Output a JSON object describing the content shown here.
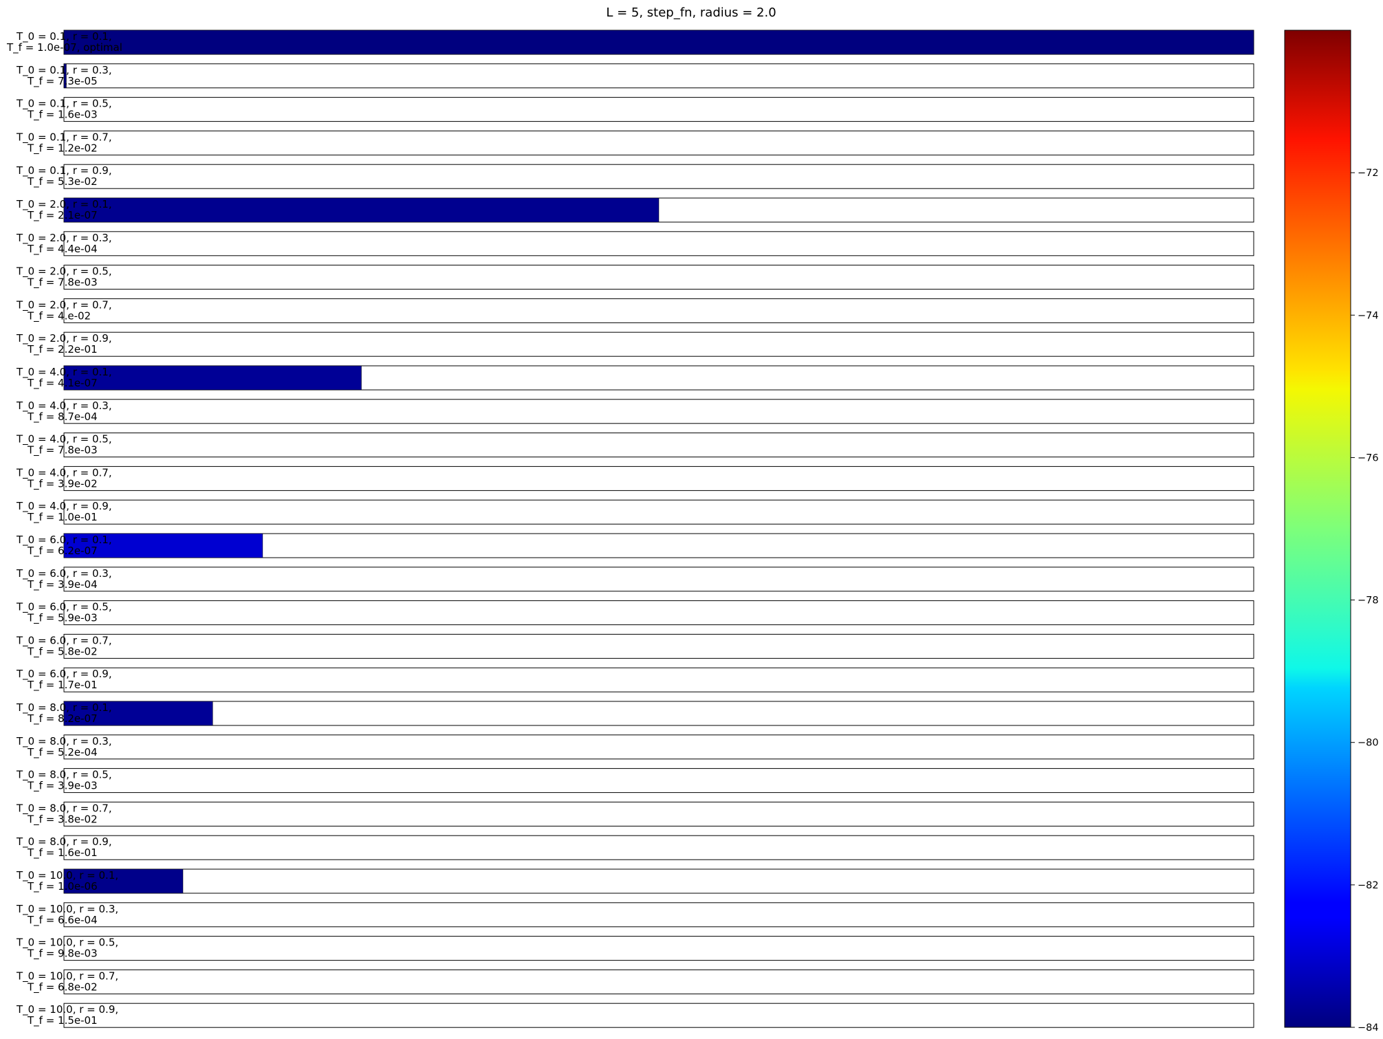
{
  "title": "L = 5, step_fn, radius = 2.0",
  "chart_data": {
    "type": "bar",
    "orientation": "horizontal",
    "title": "L = 5, step_fn, radius = 2.0",
    "xlim": [
      0,
      1
    ],
    "color_scale": {
      "colormap": "jet",
      "range": [
        -84,
        -70
      ],
      "ticks": [
        "−72",
        "−74",
        "−76",
        "−78",
        "−80",
        "−82",
        "−84"
      ],
      "tick_values": [
        -72,
        -74,
        -76,
        -78,
        -80,
        -82,
        -84
      ]
    },
    "rows": [
      {
        "label1": "T_0 = 0.1, r = 0.1,",
        "label2": "T_f = 1.0e-07, optimal",
        "value": 1.0,
        "color": "#00007f"
      },
      {
        "label1": "T_0 = 0.1, r = 0.3,",
        "label2": "T_f = 7.3e-05",
        "value": 0.002,
        "color": "#00007f"
      },
      {
        "label1": "T_0 = 0.1, r = 0.5,",
        "label2": "T_f = 1.6e-03",
        "value": 0,
        "color": "#00007f"
      },
      {
        "label1": "T_0 = 0.1, r = 0.7,",
        "label2": "T_f = 1.2e-02",
        "value": 0,
        "color": "#00007f"
      },
      {
        "label1": "T_0 = 0.1, r = 0.9,",
        "label2": "T_f = 5.3e-02",
        "value": 0,
        "color": "#00007f"
      },
      {
        "label1": "T_0 = 2.0, r = 0.1,",
        "label2": "T_f = 2.1e-07",
        "value": 0.5,
        "color": "#00008f"
      },
      {
        "label1": "T_0 = 2.0, r = 0.3,",
        "label2": "T_f = 4.4e-04",
        "value": 0,
        "color": "#00007f"
      },
      {
        "label1": "T_0 = 2.0, r = 0.5,",
        "label2": "T_f = 7.8e-03",
        "value": 0,
        "color": "#00007f"
      },
      {
        "label1": "T_0 = 2.0, r = 0.7,",
        "label2": "T_f = 4.e-02",
        "value": 0,
        "color": "#00007f"
      },
      {
        "label1": "T_0 = 2.0, r = 0.9,",
        "label2": "T_f = 2.2e-01",
        "value": 0,
        "color": "#00007f"
      },
      {
        "label1": "T_0 = 4.0, r = 0.1,",
        "label2": "T_f = 4.1e-07",
        "value": 0.25,
        "color": "#000096"
      },
      {
        "label1": "T_0 = 4.0, r = 0.3,",
        "label2": "T_f = 8.7e-04",
        "value": 0,
        "color": "#00007f"
      },
      {
        "label1": "T_0 = 4.0, r = 0.5,",
        "label2": "T_f = 7.8e-03",
        "value": 0,
        "color": "#00007f"
      },
      {
        "label1": "T_0 = 4.0, r = 0.7,",
        "label2": "T_f = 3.9e-02",
        "value": 0,
        "color": "#00007f"
      },
      {
        "label1": "T_0 = 4.0, r = 0.9,",
        "label2": "T_f = 1.0e-01",
        "value": 0,
        "color": "#00007f"
      },
      {
        "label1": "T_0 = 6.0, r = 0.1,",
        "label2": "T_f = 6.2e-07",
        "value": 0.167,
        "color": "#0000d1"
      },
      {
        "label1": "T_0 = 6.0, r = 0.3,",
        "label2": "T_f = 3.9e-04",
        "value": 0,
        "color": "#00007f"
      },
      {
        "label1": "T_0 = 6.0, r = 0.5,",
        "label2": "T_f = 5.9e-03",
        "value": 0,
        "color": "#00007f"
      },
      {
        "label1": "T_0 = 6.0, r = 0.7,",
        "label2": "T_f = 5.8e-02",
        "value": 0,
        "color": "#00007f"
      },
      {
        "label1": "T_0 = 6.0, r = 0.9,",
        "label2": "T_f = 1.7e-01",
        "value": 0,
        "color": "#00007f"
      },
      {
        "label1": "T_0 = 8.0, r = 0.1,",
        "label2": "T_f = 8.2e-07",
        "value": 0.125,
        "color": "#000096"
      },
      {
        "label1": "T_0 = 8.0, r = 0.3,",
        "label2": "T_f = 5.2e-04",
        "value": 0,
        "color": "#00007f"
      },
      {
        "label1": "T_0 = 8.0, r = 0.5,",
        "label2": "T_f = 3.9e-03",
        "value": 0,
        "color": "#00007f"
      },
      {
        "label1": "T_0 = 8.0, r = 0.7,",
        "label2": "T_f = 3.8e-02",
        "value": 0,
        "color": "#00007f"
      },
      {
        "label1": "T_0 = 8.0, r = 0.9,",
        "label2": "T_f = 1.6e-01",
        "value": 0,
        "color": "#00007f"
      },
      {
        "label1": "T_0 = 10.0, r = 0.1,",
        "label2": "T_f = 1.0e-06",
        "value": 0.1,
        "color": "#00008a"
      },
      {
        "label1": "T_0 = 10.0, r = 0.3,",
        "label2": "T_f = 6.6e-04",
        "value": 0,
        "color": "#00007f"
      },
      {
        "label1": "T_0 = 10.0, r = 0.5,",
        "label2": "T_f = 9.8e-03",
        "value": 0,
        "color": "#00007f"
      },
      {
        "label1": "T_0 = 10.0, r = 0.7,",
        "label2": "T_f = 6.8e-02",
        "value": 0,
        "color": "#00007f"
      },
      {
        "label1": "T_0 = 10.0, r = 0.9,",
        "label2": "T_f = 1.5e-01",
        "value": 0,
        "color": "#00007f"
      }
    ]
  }
}
